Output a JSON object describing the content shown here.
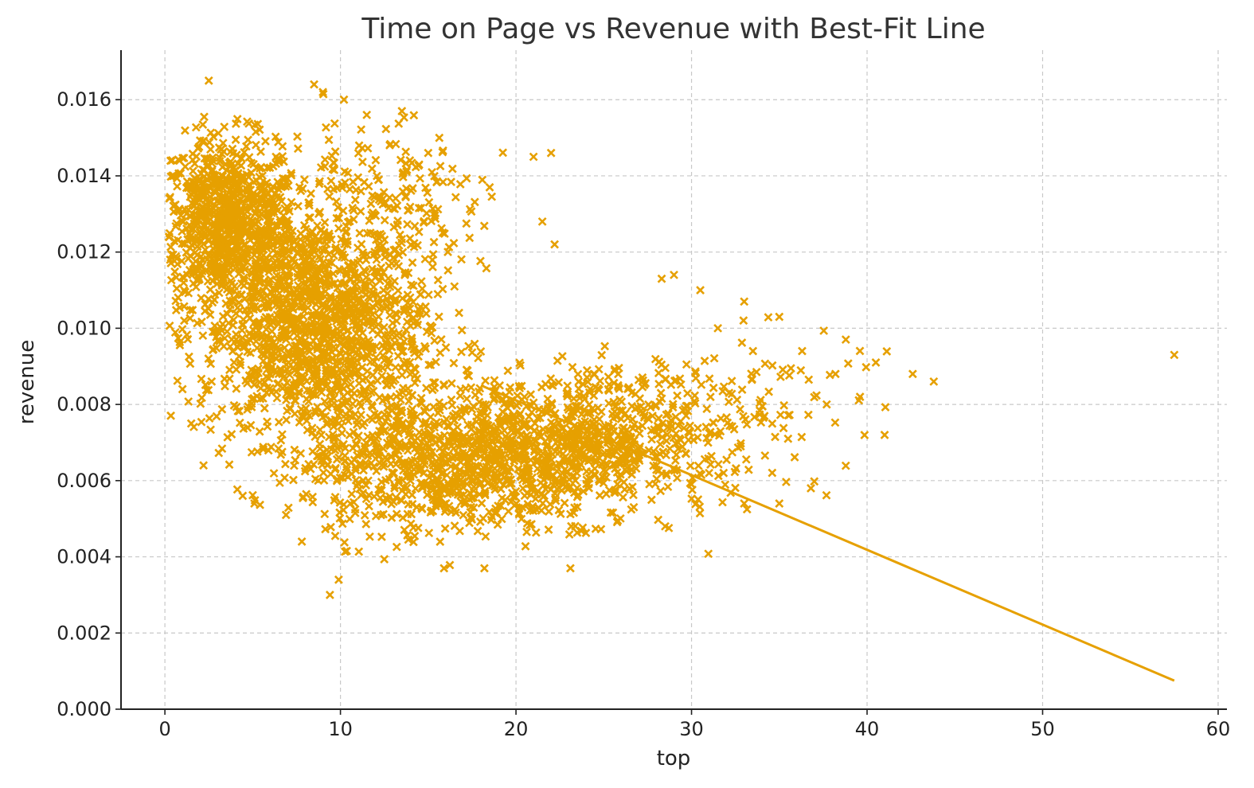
{
  "chart_data": {
    "type": "scatter",
    "title": "Time on Page vs Revenue with Best-Fit Line",
    "xlabel": "top",
    "ylabel": "revenue",
    "xlim": [
      -2.5,
      60.5
    ],
    "ylim": [
      0,
      0.0173
    ],
    "xticks": [
      0,
      10,
      20,
      30,
      40,
      50,
      60
    ],
    "yticks": [
      0.0,
      0.002,
      0.004,
      0.006,
      0.008,
      0.01,
      0.012,
      0.014,
      0.016
    ],
    "xtick_labels": [
      "0",
      "10",
      "20",
      "30",
      "40",
      "50",
      "60"
    ],
    "ytick_labels": [
      "0.000",
      "0.002",
      "0.004",
      "0.006",
      "0.008",
      "0.010",
      "0.012",
      "0.014",
      "0.016"
    ],
    "grid": true,
    "marker": "x",
    "color": "#e6a000",
    "best_fit": {
      "x": [
        18,
        57.5
      ],
      "y": [
        0.0085,
        0.00075
      ]
    },
    "clusters": [
      {
        "cx": 3.5,
        "cy": 0.0128,
        "sx": 2.0,
        "sy": 0.0011,
        "n": 900
      },
      {
        "cx": 8.5,
        "cy": 0.01,
        "sx": 3.2,
        "sy": 0.0015,
        "n": 1400
      },
      {
        "cx": 15.0,
        "cy": 0.0065,
        "sx": 3.5,
        "sy": 0.001,
        "n": 700
      },
      {
        "cx": 22.0,
        "cy": 0.0068,
        "sx": 3.5,
        "sy": 0.0009,
        "n": 700
      },
      {
        "cx": 28.0,
        "cy": 0.0074,
        "sx": 3.5,
        "sy": 0.0009,
        "n": 250
      },
      {
        "cx": 12.0,
        "cy": 0.013,
        "sx": 3.0,
        "sy": 0.0012,
        "n": 220
      },
      {
        "cx": 34.0,
        "cy": 0.0082,
        "sx": 3.5,
        "sy": 0.001,
        "n": 60
      }
    ],
    "points": [
      [
        2.5,
        0.0165
      ],
      [
        8.5,
        0.0164
      ],
      [
        9.0,
        0.0162
      ],
      [
        10.2,
        0.016
      ],
      [
        11.5,
        0.0156
      ],
      [
        13.5,
        0.0157
      ],
      [
        15.0,
        0.0146
      ],
      [
        21.0,
        0.0145
      ],
      [
        22.0,
        0.0146
      ],
      [
        18.5,
        0.0137
      ],
      [
        21.5,
        0.0128
      ],
      [
        22.2,
        0.0122
      ],
      [
        29.0,
        0.0114
      ],
      [
        28.3,
        0.0113
      ],
      [
        30.5,
        0.011
      ],
      [
        33.0,
        0.0107
      ],
      [
        35.0,
        0.0103
      ],
      [
        31.5,
        0.01
      ],
      [
        33.5,
        0.0094
      ],
      [
        36.3,
        0.0094
      ],
      [
        38.2,
        0.0088
      ],
      [
        40.5,
        0.0091
      ],
      [
        39.6,
        0.0082
      ],
      [
        42.6,
        0.0088
      ],
      [
        43.8,
        0.0086
      ],
      [
        41.0,
        0.0072
      ],
      [
        36.8,
        0.0058
      ],
      [
        57.5,
        0.0093
      ],
      [
        35.0,
        0.0054
      ],
      [
        33.0,
        0.0054
      ],
      [
        28.5,
        0.0048
      ],
      [
        23.1,
        0.0037
      ],
      [
        18.2,
        0.0037
      ],
      [
        15.9,
        0.0037
      ],
      [
        9.4,
        0.003
      ],
      [
        9.9,
        0.0034
      ],
      [
        7.8,
        0.0044
      ],
      [
        6.9,
        0.0051
      ],
      [
        5.1,
        0.0054
      ],
      [
        2.2,
        0.0064
      ],
      [
        1.0,
        0.0084
      ],
      [
        0.3,
        0.0118
      ],
      [
        0.5,
        0.014
      ],
      [
        1.1,
        0.0102
      ],
      [
        1.5,
        0.0075
      ],
      [
        37.7,
        0.008
      ],
      [
        35.5,
        0.0071
      ],
      [
        32.8,
        0.0069
      ],
      [
        31.0,
        0.0062
      ],
      [
        30.0,
        0.0059
      ]
    ]
  }
}
